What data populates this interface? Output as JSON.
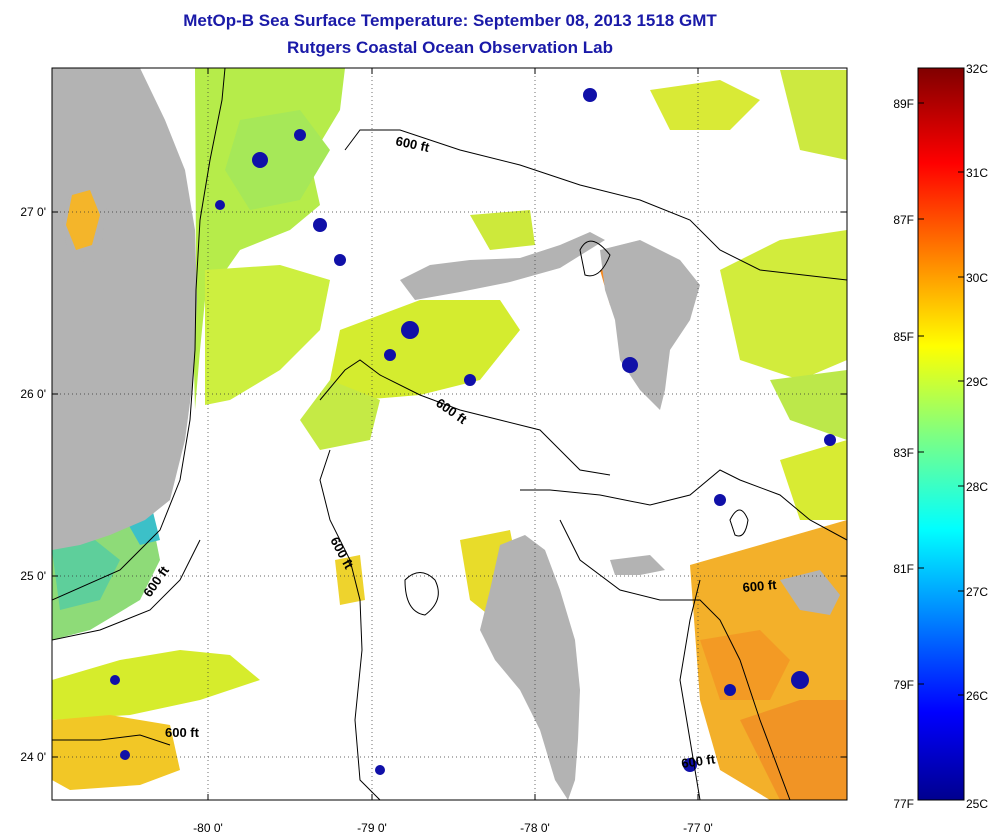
{
  "title": {
    "line1": "MetOp-B Sea Surface Temperature:  September 08, 2013 1518 GMT",
    "line2": "Rutgers Coastal Ocean Observation Lab"
  },
  "map": {
    "x_ticks": [
      {
        "value": -80,
        "label": "-80 0'"
      },
      {
        "value": -79,
        "label": "-79 0'"
      },
      {
        "value": -78,
        "label": "-78 0'"
      },
      {
        "value": -77,
        "label": "-77 0'"
      }
    ],
    "y_ticks": [
      {
        "value": 27,
        "label": "27 0'"
      },
      {
        "value": 26,
        "label": "26 0'"
      },
      {
        "value": 25,
        "label": "25 0'"
      },
      {
        "value": 24,
        "label": "24 0'"
      }
    ],
    "contour_label": "600 ft",
    "land_color": "#b3b3b3",
    "nodata_color": "#ffffff"
  },
  "colorbar": {
    "celsius_labels": [
      "32C",
      "31C",
      "30C",
      "29C",
      "28C",
      "27C",
      "26C",
      "25C"
    ],
    "fahrenheit_labels": [
      "89F",
      "87F",
      "85F",
      "83F",
      "81F",
      "79F",
      "77F"
    ],
    "min_c": 25,
    "max_c": 32,
    "colormap": "jet"
  }
}
